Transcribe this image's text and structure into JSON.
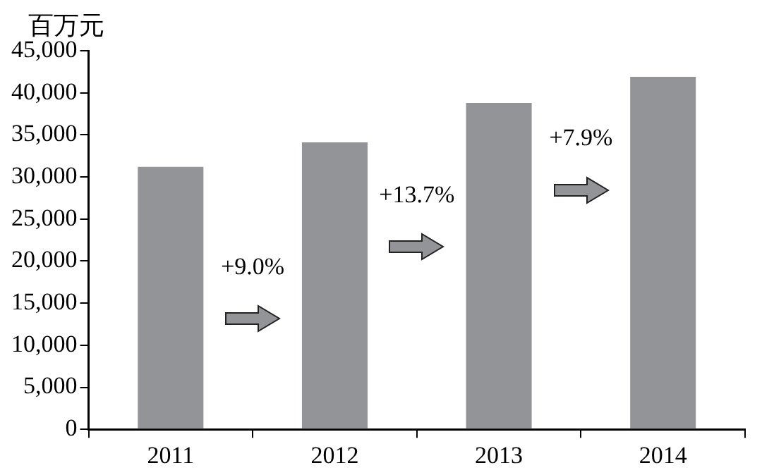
{
  "chart_data": {
    "type": "bar",
    "ylabel": "百万元",
    "categories": [
      "2011",
      "2012",
      "2013",
      "2014"
    ],
    "values": [
      31200,
      34100,
      38800,
      41900
    ],
    "color": "#939497",
    "ylim": [
      0,
      45000
    ],
    "yticks": [
      {
        "value": 0,
        "label": "0"
      },
      {
        "value": 5000,
        "label": "5,000"
      },
      {
        "value": 10000,
        "label": "10,000"
      },
      {
        "value": 15000,
        "label": "15,000"
      },
      {
        "value": 20000,
        "label": "20,000"
      },
      {
        "value": 25000,
        "label": "25,000"
      },
      {
        "value": 30000,
        "label": "30,000"
      },
      {
        "value": 35000,
        "label": "35,000"
      },
      {
        "value": 40000,
        "label": "40,000"
      },
      {
        "value": 45000,
        "label": "45,000"
      }
    ],
    "grid": false,
    "legend": false,
    "annotations": [
      "+9.0%",
      "+13.7%",
      "+7.9%"
    ]
  }
}
